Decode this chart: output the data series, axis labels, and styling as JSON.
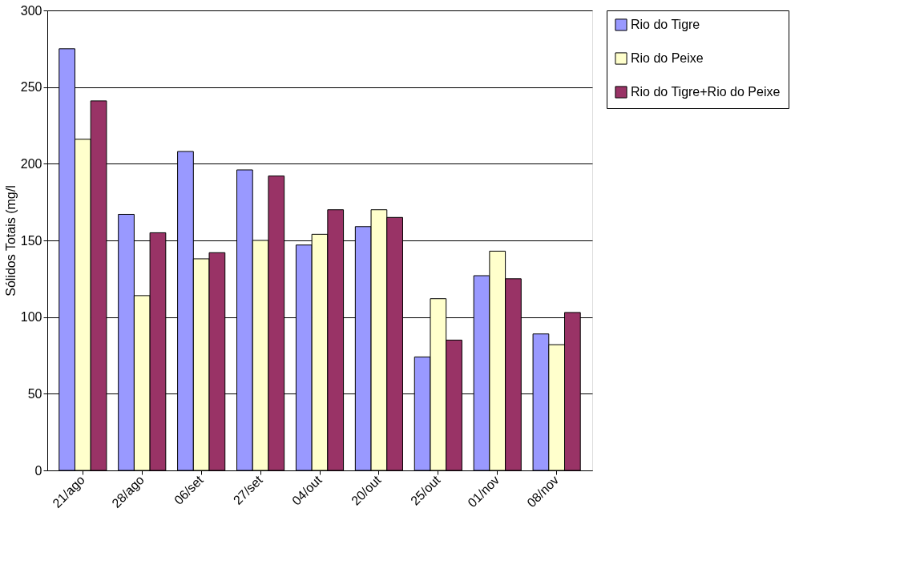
{
  "chart_data": {
    "type": "bar",
    "ylabel": "Sólidos Totais (mg/l",
    "categories": [
      "21/ago",
      "28/ago",
      "06/set",
      "27/set",
      "04/out",
      "20/out",
      "25/out",
      "01/nov",
      "08/nov"
    ],
    "series": [
      {
        "name": "Rio do Tigre",
        "color": "#9999ff",
        "values": [
          275,
          167,
          208,
          196,
          147,
          159,
          74,
          127,
          89
        ]
      },
      {
        "name": "Rio do Peixe",
        "color": "#ffffcc",
        "values": [
          216,
          114,
          138,
          150,
          154,
          170,
          112,
          143,
          82
        ]
      },
      {
        "name": "Rio do Tigre+Rio do Peixe",
        "color": "#993366",
        "values": [
          241,
          155,
          142,
          192,
          170,
          165,
          85,
          125,
          103
        ]
      }
    ],
    "ylim": [
      0,
      300
    ],
    "yticks": [
      0,
      50,
      100,
      150,
      200,
      250,
      300
    ],
    "grid": "y",
    "legend": "right"
  }
}
